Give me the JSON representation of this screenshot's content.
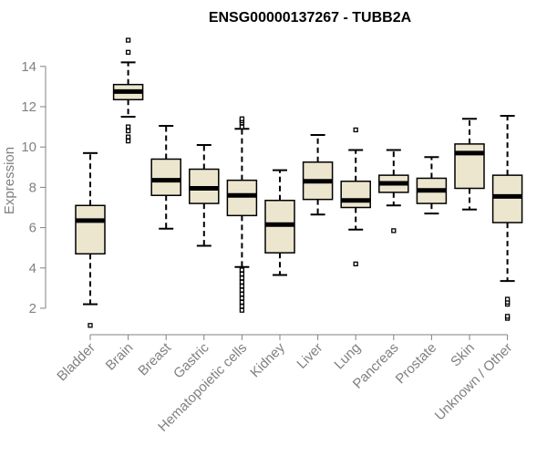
{
  "chart_data": {
    "type": "boxplot",
    "title": "ENSG00000137267 - TUBB2A",
    "xlabel": "",
    "ylabel": "Expression",
    "ylim": [
      1,
      15.5
    ],
    "yticks": [
      2,
      4,
      6,
      8,
      10,
      12,
      14
    ],
    "box_fill": "#ede6cf",
    "categories": [
      "Bladder",
      "Brain",
      "Breast",
      "Gastric",
      "Hematopoietic cells",
      "Kidney",
      "Liver",
      "Lung",
      "Pancreas",
      "Prostate",
      "Skin",
      "Unknown / Other"
    ],
    "boxes": [
      {
        "min": 2.2,
        "q1": 4.7,
        "median": 6.35,
        "q3": 7.1,
        "max": 9.7,
        "outliers": [
          1.15
        ]
      },
      {
        "min": 11.5,
        "q1": 12.35,
        "median": 12.75,
        "q3": 13.1,
        "max": 14.2,
        "outliers": [
          10.3,
          10.5,
          10.8,
          11.0,
          14.7,
          15.3
        ]
      },
      {
        "min": 5.95,
        "q1": 7.6,
        "median": 8.35,
        "q3": 9.4,
        "max": 11.05,
        "outliers": []
      },
      {
        "min": 5.1,
        "q1": 7.2,
        "median": 7.95,
        "q3": 8.9,
        "max": 10.1,
        "outliers": []
      },
      {
        "min": 4.05,
        "q1": 6.6,
        "median": 7.6,
        "q3": 8.35,
        "max": 10.9,
        "outliers": [
          1.9,
          2.1,
          2.3,
          2.5,
          2.7,
          2.9,
          3.1,
          3.3,
          3.5,
          3.7,
          3.9,
          11.0,
          11.2,
          11.3,
          11.4
        ]
      },
      {
        "min": 3.65,
        "q1": 4.75,
        "median": 6.15,
        "q3": 7.35,
        "max": 8.85,
        "outliers": []
      },
      {
        "min": 6.65,
        "q1": 7.4,
        "median": 8.3,
        "q3": 9.25,
        "max": 10.6,
        "outliers": []
      },
      {
        "min": 5.9,
        "q1": 7.0,
        "median": 7.35,
        "q3": 8.3,
        "max": 9.85,
        "outliers": [
          4.2,
          10.85
        ]
      },
      {
        "min": 7.1,
        "q1": 7.75,
        "median": 8.2,
        "q3": 8.6,
        "max": 9.85,
        "outliers": [
          5.85
        ]
      },
      {
        "min": 6.7,
        "q1": 7.2,
        "median": 7.85,
        "q3": 8.45,
        "max": 9.5,
        "outliers": []
      },
      {
        "min": 6.9,
        "q1": 7.95,
        "median": 9.7,
        "q3": 10.15,
        "max": 11.4,
        "outliers": []
      },
      {
        "min": 3.35,
        "q1": 6.25,
        "median": 7.55,
        "q3": 8.6,
        "max": 11.55,
        "outliers": [
          1.5,
          1.6,
          2.2,
          2.3,
          2.45
        ]
      }
    ]
  }
}
